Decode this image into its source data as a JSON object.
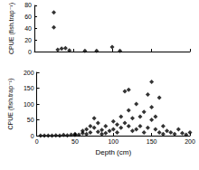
{
  "chart_data": [
    {
      "type": "scatter",
      "ylabel": "CPUE (fish.trap⁻¹)",
      "x": [
        25,
        25,
        30,
        35,
        40,
        45,
        65,
        80,
        100,
        110
      ],
      "values": [
        68,
        42,
        3,
        5,
        6,
        2,
        1,
        1,
        8,
        1
      ],
      "color": "#000000",
      "marker": "diamond",
      "xlim": [
        0,
        200
      ],
      "xticks": [
        0,
        50,
        100,
        150,
        200
      ],
      "ylim": [
        0,
        80
      ],
      "yticks": [
        0,
        20,
        40,
        60,
        80
      ],
      "tick_labels": "y"
    },
    {
      "type": "scatter",
      "xlabel": "Depth (cm)",
      "ylabel": "CPUE (fish.trap⁻¹)",
      "x": [
        5,
        10,
        15,
        20,
        25,
        30,
        35,
        40,
        45,
        50,
        50,
        55,
        60,
        60,
        65,
        65,
        70,
        70,
        75,
        75,
        80,
        80,
        85,
        85,
        90,
        90,
        95,
        100,
        100,
        105,
        105,
        110,
        110,
        115,
        115,
        120,
        120,
        120,
        125,
        125,
        130,
        130,
        135,
        135,
        140,
        140,
        145,
        145,
        150,
        150,
        150,
        155,
        155,
        160,
        160,
        165,
        165,
        170,
        175,
        180,
        185,
        190,
        195,
        200
      ],
      "values": [
        0,
        0,
        0,
        0,
        1,
        0,
        2,
        1,
        3,
        2,
        5,
        3,
        8,
        15,
        5,
        20,
        10,
        30,
        25,
        55,
        12,
        40,
        5,
        18,
        8,
        30,
        15,
        20,
        45,
        10,
        35,
        25,
        60,
        40,
        140,
        30,
        145,
        80,
        15,
        55,
        20,
        100,
        30,
        60,
        10,
        75,
        25,
        130,
        50,
        170,
        90,
        20,
        60,
        10,
        120,
        5,
        30,
        15,
        10,
        5,
        20,
        8,
        3,
        10
      ],
      "color": "#000000",
      "marker": "diamond",
      "xlim": [
        0,
        200
      ],
      "xticks": [
        0,
        50,
        100,
        150,
        200
      ],
      "ylim": [
        0,
        200
      ],
      "yticks": [
        0,
        50,
        100,
        150,
        200
      ]
    }
  ]
}
